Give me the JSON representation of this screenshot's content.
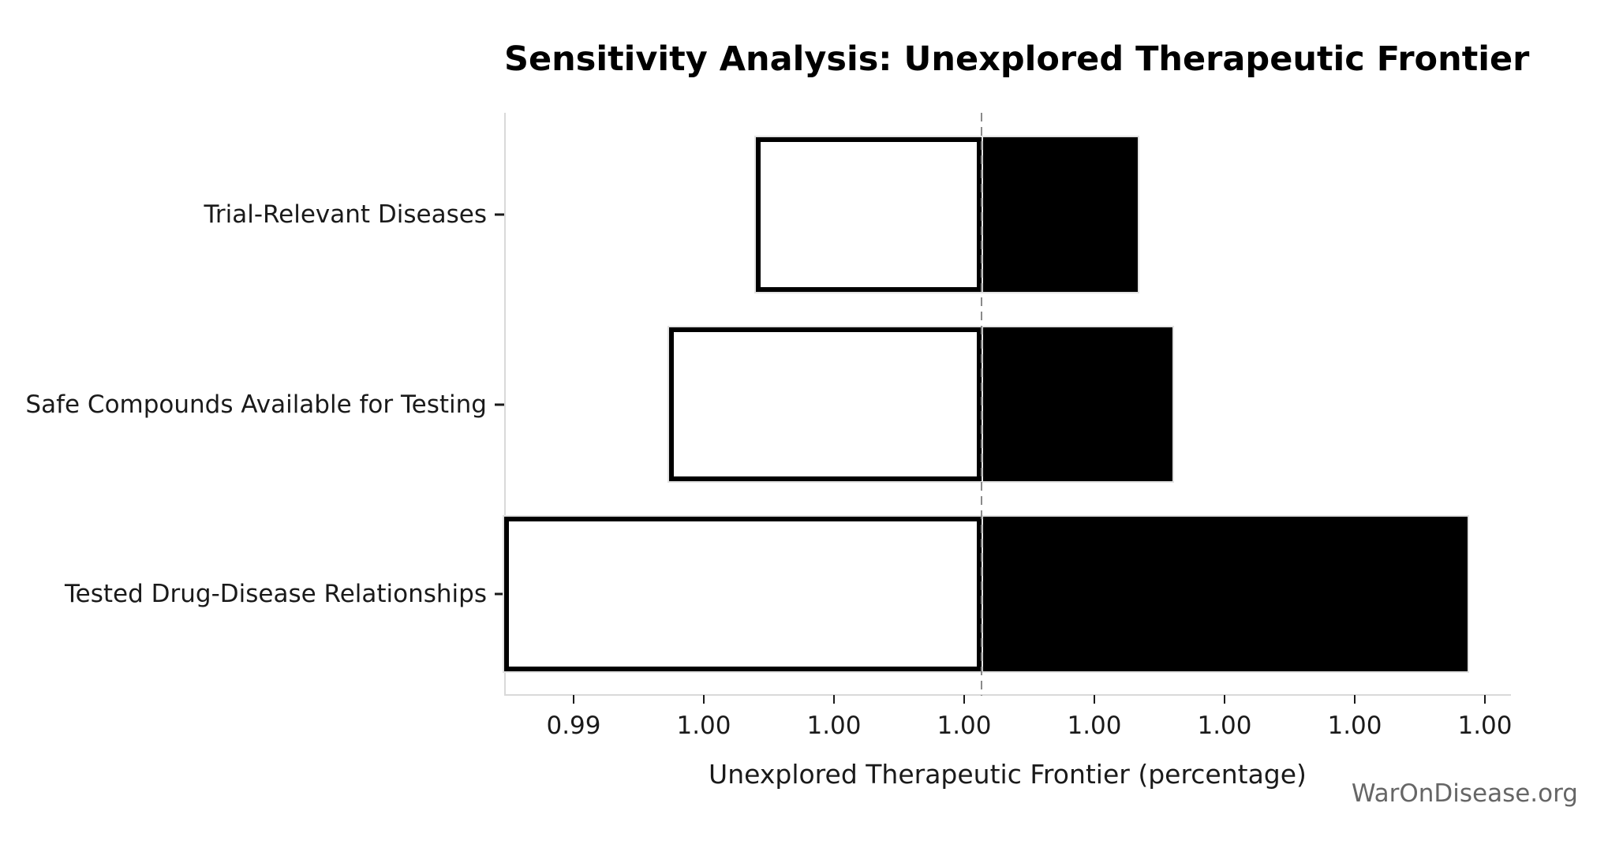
{
  "title": {
    "text": "Sensitivity Analysis: Unexplored Therapeutic Frontier"
  },
  "chart_data": {
    "type": "bar",
    "variant": "tornado-sensitivity",
    "title": "Sensitivity Analysis: Unexplored Therapeutic Frontier",
    "xlabel": "Unexplored Therapeutic Frontier (percentage)",
    "watermark": "WarOnDisease.org",
    "categories": [
      "Trial-Relevant Diseases",
      "Safe Compounds Available for Testing",
      "Tested Drug-Disease Relationships"
    ],
    "baseline": 0.9992,
    "series": [
      {
        "name": "Trial-Relevant Diseases",
        "low": 0.9966,
        "high": 1.001
      },
      {
        "name": "Safe Compounds Available for Testing",
        "low": 0.9956,
        "high": 1.0014
      },
      {
        "name": "Tested Drug-Disease Relationships",
        "low": 0.9937,
        "high": 1.0048
      }
    ],
    "x_ticks": [
      {
        "value": 0.9945,
        "label": "0.99"
      },
      {
        "value": 0.996,
        "label": "1.00"
      },
      {
        "value": 0.9975,
        "label": "1.00"
      },
      {
        "value": 0.999,
        "label": "1.00"
      },
      {
        "value": 1.0005,
        "label": "1.00"
      },
      {
        "value": 1.002,
        "label": "1.00"
      },
      {
        "value": 1.0035,
        "label": "1.00"
      },
      {
        "value": 1.005,
        "label": "1.00"
      }
    ],
    "xlim": [
      0.9937,
      1.0053
    ],
    "colors": {
      "bar_low_fill": "#ffffff",
      "bar_high_fill": "#000000",
      "bar_edge": "#000000",
      "baseline_dash": "#8a8a8a",
      "spine": "#d9d9d9",
      "tick": "#1a1a1a",
      "text": "#1a1a1a",
      "watermark": "#666666"
    },
    "layout": {
      "band_centers_frac": [
        0.175,
        0.5,
        0.825
      ],
      "bar_height_frac": 0.265,
      "grid": false,
      "legend": false,
      "baseline_style": "dashed-vertical"
    }
  }
}
